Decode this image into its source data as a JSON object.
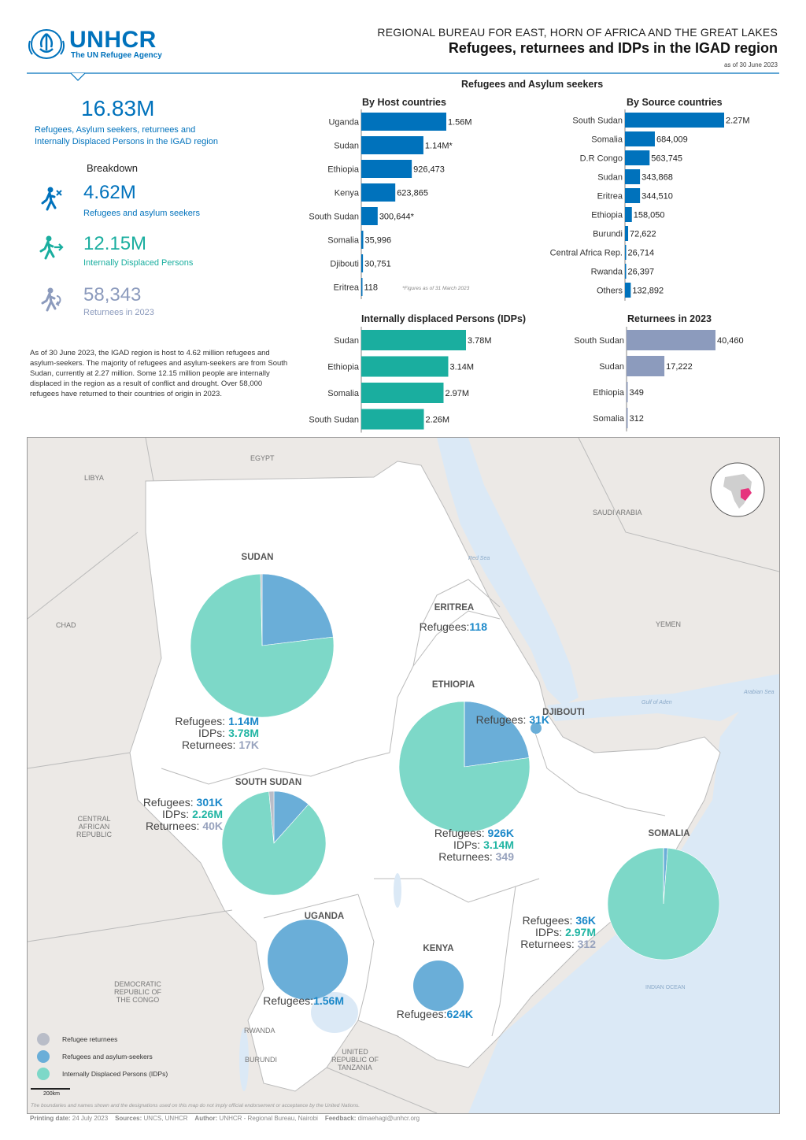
{
  "header": {
    "logo": "UNHCR",
    "logo_tagline": "The UN Refugee Agency",
    "subtitle": "REGIONAL BUREAU FOR EAST, HORN OF AFRICA AND THE GREAT LAKES",
    "title": "Refugees, returnees and IDPs in the IGAD region",
    "date": "as of 30 June 2023"
  },
  "summary": {
    "total": "16.83M",
    "total_label_line1": "Refugees, Asylum seekers, returnees and",
    "total_label_line2": "Internally Displaced Persons in the IGAD region",
    "breakdown_title": "Breakdown",
    "refugees_value": "4.62M",
    "refugees_label": "Refugees and asylum seekers",
    "idps_value": "12.15M",
    "idps_label": "Internally Displaced Persons",
    "returnees_value": "58,343",
    "returnees_label": "Returnees in 2023",
    "paragraph": "As of 30 June 2023, the IGAD region is host to 4.62 million refugees and asylum-seekers. The majority of refugees and asylum-seekers are from South Sudan, currently at 2.27 million. Some 12.15 million people are internally displaced in the region as a result of conflict and drought. Over 58,000 refugees have returned to their countries of origin in 2023."
  },
  "colors": {
    "refugees": "#0072bc",
    "idps": "#1aae9f",
    "returnees": "#8c9bbd",
    "pie_refugees": "#6aaed8",
    "pie_idps": "#7dd8c8",
    "pie_returnees": "#b9bdc8"
  },
  "chart_data": [
    {
      "type": "bar",
      "group_title": "Refugees and Asylum seekers",
      "title": "By Host countries",
      "categories": [
        "Uganda",
        "Sudan",
        "Ethiopia",
        "Kenya",
        "South Sudan",
        "Somalia",
        "Djibouti",
        "Eritrea"
      ],
      "values": [
        1560000,
        1140000,
        926473,
        623865,
        300644,
        35996,
        30751,
        118
      ],
      "data_labels": [
        "1.56M",
        "1.14M*",
        "926,473",
        "623,865",
        "300,644*",
        "35,996",
        "30,751",
        "118"
      ],
      "note": "*Figures as of 31 March 2023",
      "color": "#0072bc"
    },
    {
      "type": "bar",
      "title": "By Source countries",
      "categories": [
        "South Sudan",
        "Somalia",
        "D.R Congo",
        "Sudan",
        "Eritrea",
        "Ethiopia",
        "Burundi",
        "Central Africa Rep.",
        "Rwanda",
        "Others"
      ],
      "values": [
        2270000,
        684009,
        563745,
        343868,
        344510,
        158050,
        72622,
        26714,
        26397,
        132892
      ],
      "data_labels": [
        "2.27M",
        "684,009",
        "563,745",
        "343,868",
        "344,510",
        "158,050",
        "72,622",
        "26,714",
        "26,397",
        "132,892"
      ],
      "color": "#0072bc"
    },
    {
      "type": "bar",
      "title": "Internally displaced Persons (IDPs)",
      "categories": [
        "Sudan",
        "Ethiopia",
        "Somalia",
        "South Sudan"
      ],
      "values": [
        3780000,
        3140000,
        2970000,
        2260000
      ],
      "data_labels": [
        "3.78M",
        "3.14M",
        "2.97M",
        "2.26M"
      ],
      "color": "#1aae9f"
    },
    {
      "type": "bar",
      "title": "Returnees in 2023",
      "categories": [
        "South Sudan",
        "Sudan",
        "Ethiopia",
        "Somalia"
      ],
      "values": [
        40460,
        17222,
        349,
        312
      ],
      "data_labels": [
        "40,460",
        "17,222",
        "349",
        "312"
      ],
      "color": "#8c9bbd"
    },
    {
      "type": "pie",
      "title": "Map pies by country",
      "countries": [
        {
          "name": "SUDAN",
          "refugees": 1140000,
          "idps": 3780000,
          "returnees": 17000,
          "lines": [
            [
              "Refugees: ",
              "1.14M",
              "blue"
            ],
            [
              "IDPs: ",
              "3.78M",
              "teal"
            ],
            [
              "Returnees: ",
              "17K",
              "grey"
            ]
          ]
        },
        {
          "name": "SOUTH SUDAN",
          "refugees": 301000,
          "idps": 2260000,
          "returnees": 40000,
          "lines": [
            [
              "Refugees: ",
              "301K",
              "blue"
            ],
            [
              "IDPs: ",
              "2.26M",
              "teal"
            ],
            [
              "Returnees: ",
              "40K",
              "grey"
            ]
          ]
        },
        {
          "name": "ETHIOPIA",
          "refugees": 926000,
          "idps": 3140000,
          "returnees": 349,
          "lines": [
            [
              "Refugees: ",
              "926K",
              "blue"
            ],
            [
              "IDPs: ",
              "3.14M",
              "teal"
            ],
            [
              "Returnees: ",
              "349",
              "grey"
            ]
          ]
        },
        {
          "name": "SOMALIA",
          "refugees": 36000,
          "idps": 2970000,
          "returnees": 312,
          "lines": [
            [
              "Refugees: ",
              "36K",
              "blue"
            ],
            [
              "IDPs: ",
              "2.97M",
              "teal"
            ],
            [
              "Returnees: ",
              "312",
              "grey"
            ]
          ]
        },
        {
          "name": "UGANDA",
          "refugees": 1560000,
          "idps": 0,
          "returnees": 0,
          "lines": [
            [
              "Refugees:",
              "1.56M",
              "blue"
            ]
          ]
        },
        {
          "name": "KENYA",
          "refugees": 624000,
          "idps": 0,
          "returnees": 0,
          "lines": [
            [
              "Refugees:",
              "624K",
              "blue"
            ]
          ]
        },
        {
          "name": "DJIBOUTI",
          "refugees": 31000,
          "idps": 0,
          "returnees": 0,
          "lines": [
            [
              "Refugees: ",
              "31K",
              "blue"
            ]
          ]
        },
        {
          "name": "ERITREA",
          "refugees": 118,
          "idps": 0,
          "returnees": 0,
          "lines": [
            [
              "Refugees:",
              "118",
              "blue"
            ]
          ]
        }
      ]
    }
  ],
  "map": {
    "labels": {
      "egypt": "EGYPT",
      "libya": "LIBYA",
      "chad": "CHAD",
      "car_1": "CENTRAL",
      "car_2": "AFRICAN",
      "car_3": "REPUBLIC",
      "drc_1": "DEMOCRATIC",
      "drc_2": "REPUBLIC OF",
      "drc_3": "THE CONGO",
      "rwanda": "RWANDA",
      "burundi": "BURUNDI",
      "tanzania_1": "UNITED",
      "tanzania_2": "REPUBLIC OF",
      "tanzania_3": "TANZANIA",
      "saudi": "SAUDI ARABIA",
      "yemen": "YEMEN",
      "red_sea": "Red Sea",
      "gulf_aden": "Gulf of Aden",
      "arabian_sea": "Arabian Sea",
      "indian_ocean": "INDIAN OCEAN"
    },
    "legend": [
      {
        "label": "Refugee returnees",
        "color": "#b9bdc8"
      },
      {
        "label": "Refugees and asylum-seekers",
        "color": "#6aaed8"
      },
      {
        "label": "Internally Displaced Persons (IDPs)",
        "color": "#7dd8c8"
      }
    ],
    "scale": "200km",
    "disclaimer": "The boundaries and names shown and the designations used on this map do not imply official endorsement or acceptance by the United Nations."
  },
  "footer": {
    "printing_label": "Printing date:",
    "printing_value": "24 July 2023",
    "sources_label": "Sources:",
    "sources_value": "UNCS, UNHCR",
    "author_label": "Author:",
    "author_value": "UNHCR - Regional Bureau, Nairobi",
    "feedback_label": "Feedback:",
    "feedback_value": "dimaehagi@unhcr.org"
  }
}
